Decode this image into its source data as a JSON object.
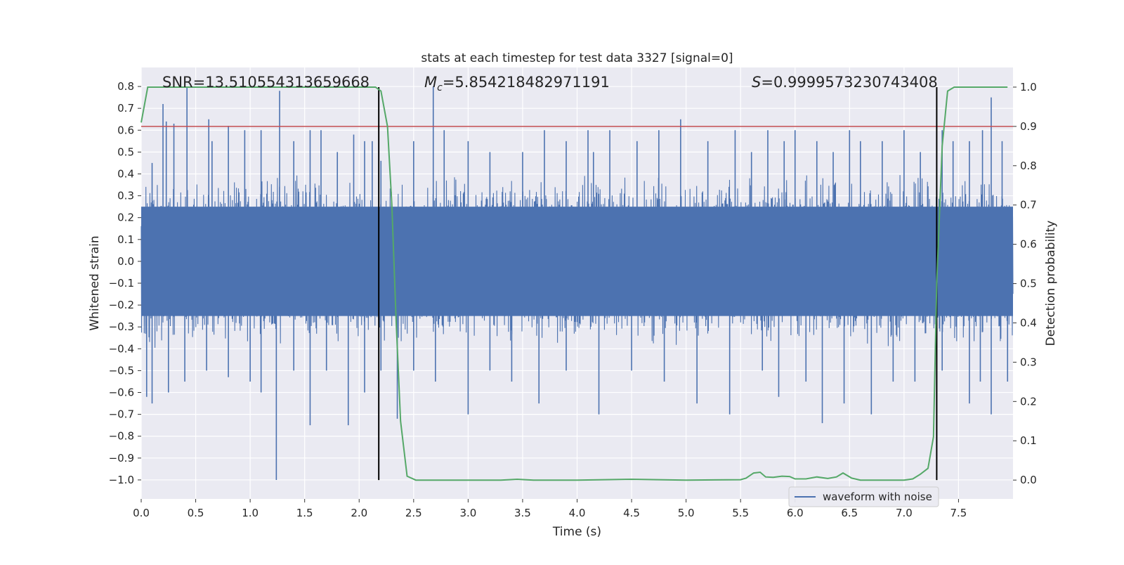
{
  "chart_data": {
    "type": "line",
    "title": "stats at each timestep for test data 3327 [signal=0]",
    "xlabel": "Time (s)",
    "ylabel": "Whitened strain",
    "y2label": "Detection probability",
    "xlim": [
      0.0,
      8.0
    ],
    "ylim": [
      -1.087,
      0.887
    ],
    "y2lim": [
      -0.048,
      1.05
    ],
    "x_ticks": [
      0.0,
      0.5,
      1.0,
      1.5,
      2.0,
      2.5,
      3.0,
      3.5,
      4.0,
      4.5,
      5.0,
      5.5,
      6.0,
      6.5,
      7.0,
      7.5
    ],
    "x_tick_labels": [
      "0.0",
      "0.5",
      "1.0",
      "1.5",
      "2.0",
      "2.5",
      "3.0",
      "3.5",
      "4.0",
      "4.5",
      "5.0",
      "5.5",
      "6.0",
      "6.5",
      "7.0",
      "7.5"
    ],
    "y_ticks": [
      0.8,
      0.7,
      0.6,
      0.5,
      0.4,
      0.3,
      0.2,
      0.1,
      0.0,
      -0.1,
      -0.2,
      -0.3,
      -0.4,
      -0.5,
      -0.6,
      -0.7,
      -0.8,
      -0.9,
      -1.0
    ],
    "y_tick_labels": [
      "0.8",
      "0.7",
      "0.6",
      "0.5",
      "0.4",
      "0.3",
      "0.2",
      "0.1",
      "0.0",
      "−0.1",
      "−0.2",
      "−0.3",
      "−0.4",
      "−0.5",
      "−0.6",
      "−0.7",
      "−0.8",
      "−0.9",
      "−1.0"
    ],
    "y2_ticks": [
      1.0,
      0.9,
      0.8,
      0.7,
      0.6,
      0.5,
      0.4,
      0.3,
      0.2,
      0.1,
      0.0
    ],
    "y2_tick_labels": [
      "1.0",
      "0.9",
      "0.8",
      "0.7",
      "0.6",
      "0.5",
      "0.4",
      "0.3",
      "0.2",
      "0.1",
      "0.0"
    ],
    "threshold_prob": 0.9,
    "vertical_markers_s": [
      2.18,
      7.3
    ],
    "waveform": {
      "name": "waveform with noise",
      "color": "#4c72b0",
      "x_range": [
        0.0,
        8.0
      ],
      "envelope_core": 0.25,
      "positive_spikes": [
        [
          0.1,
          0.45
        ],
        [
          0.2,
          0.72
        ],
        [
          0.23,
          0.64
        ],
        [
          0.3,
          0.63
        ],
        [
          0.42,
          0.8
        ],
        [
          0.62,
          0.65
        ],
        [
          0.65,
          0.55
        ],
        [
          0.8,
          0.62
        ],
        [
          0.95,
          0.6
        ],
        [
          1.1,
          0.6
        ],
        [
          1.27,
          0.78
        ],
        [
          1.4,
          0.55
        ],
        [
          1.55,
          0.6
        ],
        [
          1.65,
          0.6
        ],
        [
          1.8,
          0.5
        ],
        [
          1.95,
          0.58
        ],
        [
          2.05,
          0.55
        ],
        [
          2.12,
          0.55
        ],
        [
          2.2,
          0.46
        ],
        [
          2.5,
          0.55
        ],
        [
          2.68,
          0.8
        ],
        [
          2.78,
          0.6
        ],
        [
          3.0,
          0.55
        ],
        [
          3.2,
          0.5
        ],
        [
          3.5,
          0.5
        ],
        [
          3.7,
          0.6
        ],
        [
          3.9,
          0.55
        ],
        [
          4.1,
          0.6
        ],
        [
          4.15,
          0.5
        ],
        [
          4.3,
          0.6
        ],
        [
          4.55,
          0.55
        ],
        [
          4.75,
          0.6
        ],
        [
          4.95,
          0.65
        ],
        [
          5.2,
          0.55
        ],
        [
          5.45,
          0.6
        ],
        [
          5.6,
          0.5
        ],
        [
          5.75,
          0.6
        ],
        [
          5.9,
          0.55
        ],
        [
          6.0,
          0.6
        ],
        [
          6.2,
          0.55
        ],
        [
          6.35,
          0.5
        ],
        [
          6.5,
          0.6
        ],
        [
          6.6,
          0.55
        ],
        [
          6.8,
          0.55
        ],
        [
          7.0,
          0.6
        ],
        [
          7.15,
          0.5
        ],
        [
          7.35,
          0.6
        ],
        [
          7.45,
          0.55
        ],
        [
          7.6,
          0.55
        ],
        [
          7.72,
          0.6
        ],
        [
          7.8,
          0.75
        ],
        [
          7.9,
          0.55
        ]
      ],
      "negative_spikes": [
        [
          0.05,
          -0.62
        ],
        [
          0.1,
          -0.65
        ],
        [
          0.25,
          -0.6
        ],
        [
          0.4,
          -0.55
        ],
        [
          0.6,
          -0.5
        ],
        [
          0.8,
          -0.53
        ],
        [
          1.0,
          -0.55
        ],
        [
          1.1,
          -0.6
        ],
        [
          1.24,
          -1.0
        ],
        [
          1.4,
          -0.5
        ],
        [
          1.55,
          -0.75
        ],
        [
          1.7,
          -0.5
        ],
        [
          1.9,
          -0.75
        ],
        [
          2.05,
          -0.6
        ],
        [
          2.2,
          -0.5
        ],
        [
          2.35,
          -0.72
        ],
        [
          2.5,
          -0.5
        ],
        [
          2.7,
          -0.55
        ],
        [
          3.0,
          -0.7
        ],
        [
          3.2,
          -0.5
        ],
        [
          3.4,
          -0.55
        ],
        [
          3.65,
          -0.65
        ],
        [
          3.9,
          -0.5
        ],
        [
          4.2,
          -0.7
        ],
        [
          4.5,
          -0.5
        ],
        [
          4.8,
          -0.55
        ],
        [
          5.1,
          -0.65
        ],
        [
          5.4,
          -0.7
        ],
        [
          5.7,
          -0.5
        ],
        [
          5.85,
          -0.62
        ],
        [
          6.1,
          -0.55
        ],
        [
          6.25,
          -0.74
        ],
        [
          6.45,
          -0.65
        ],
        [
          6.7,
          -0.7
        ],
        [
          6.9,
          -0.55
        ],
        [
          7.1,
          -0.55
        ],
        [
          7.35,
          -0.5
        ],
        [
          7.6,
          -0.65
        ],
        [
          7.7,
          -0.55
        ],
        [
          7.8,
          -0.7
        ],
        [
          7.95,
          -0.55
        ]
      ]
    },
    "threshold": {
      "color": "#c44e52"
    },
    "probability": {
      "name": "detection probability",
      "color": "#55a868",
      "x": [
        0.0,
        0.06,
        0.4,
        0.8,
        1.2,
        1.6,
        2.0,
        2.1,
        2.15,
        2.2,
        2.26,
        2.3,
        2.34,
        2.38,
        2.44,
        2.52,
        3.0,
        3.3,
        3.45,
        3.6,
        4.0,
        4.5,
        5.0,
        5.5,
        5.55,
        5.62,
        5.68,
        5.73,
        5.8,
        5.88,
        5.95,
        6.0,
        6.1,
        6.2,
        6.3,
        6.38,
        6.44,
        6.52,
        6.6,
        7.0,
        7.08,
        7.15,
        7.22,
        7.27,
        7.3,
        7.35,
        7.4,
        7.46,
        7.6,
        7.95
      ],
      "y": [
        0.91,
        1.0,
        1.0,
        1.0,
        1.0,
        1.0,
        1.0,
        1.0,
        1.0,
        0.99,
        0.9,
        0.7,
        0.4,
        0.15,
        0.01,
        0.0,
        0.0,
        0.0,
        0.002,
        0.0,
        0.0,
        0.002,
        0.0,
        0.001,
        0.005,
        0.018,
        0.02,
        0.008,
        0.007,
        0.01,
        0.009,
        0.003,
        0.003,
        0.008,
        0.004,
        0.008,
        0.018,
        0.005,
        0.0,
        0.0,
        0.003,
        0.015,
        0.03,
        0.11,
        0.5,
        0.85,
        0.99,
        1.0,
        1.0,
        1.0
      ]
    },
    "annotations": [
      {
        "label": "SNR=13.510554313659668"
      },
      {
        "symbol": "M",
        "subscript": "c",
        "value": "=5.854218482971191"
      },
      {
        "symbol": "S",
        "value": "=0.9999573230743408"
      }
    ],
    "legend": {
      "label": "waveform with noise",
      "position": "lower-right"
    }
  },
  "colors": {
    "plot_bg": "#eaeaf2",
    "grid": "#ffffff",
    "marker": "#000000"
  }
}
